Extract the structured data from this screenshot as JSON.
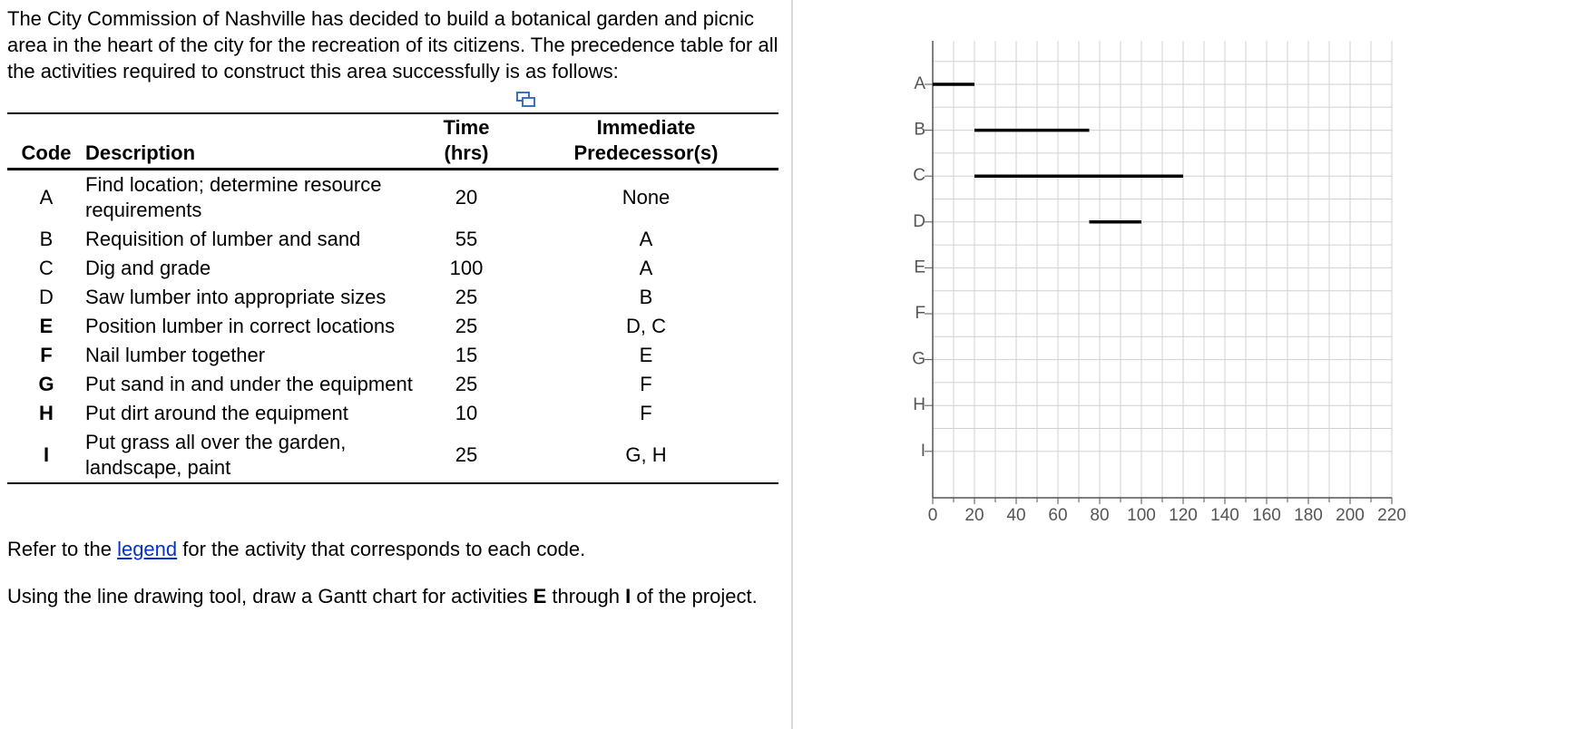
{
  "intro": "The City Commission of Nashville has decided to build a botanical garden and picnic area in the heart of the city for the recreation of its citizens. The precedence table for all the activities required to construct this area successfully is as follows:",
  "table": {
    "headers": [
      "Code",
      "Description",
      "Time (hrs)",
      "Immediate Predecessor(s)"
    ],
    "rows": [
      [
        "A",
        "Find location; determine resource requirements",
        20,
        "None"
      ],
      [
        "B",
        "Requisition of lumber and sand",
        55,
        "A"
      ],
      [
        "C",
        "Dig and grade",
        100,
        "A"
      ],
      [
        "D",
        "Saw lumber into appropriate sizes",
        25,
        "B"
      ],
      [
        "E",
        "Position lumber in correct locations",
        25,
        "D, C"
      ],
      [
        "F",
        "Nail lumber together",
        15,
        "E"
      ],
      [
        "G",
        "Put sand in and under the equipment",
        25,
        "F"
      ],
      [
        "H",
        "Put dirt around the equipment",
        10,
        "F"
      ],
      [
        "I",
        "Put grass all over the garden, landscape, paint",
        25,
        "G, H"
      ]
    ]
  },
  "legend_note": [
    "Refer to the ",
    "legend",
    " for the activity that corresponds to each code."
  ],
  "instruction": [
    "Using the line drawing tool, draw a Gantt chart for activities ",
    "E",
    " through ",
    "I",
    " of the project."
  ],
  "chart_data": {
    "type": "gantt",
    "categories": [
      "A",
      "B",
      "C",
      "D",
      "E",
      "F",
      "G",
      "H",
      "I"
    ],
    "start": [
      0,
      20,
      20,
      75,
      null,
      null,
      null,
      null,
      null
    ],
    "end": [
      20,
      75,
      120,
      100,
      null,
      null,
      null,
      null,
      null
    ],
    "color": "#000000",
    "xlim": [
      0,
      220
    ],
    "xticks": [
      0,
      20,
      40,
      60,
      80,
      100,
      120,
      140,
      160,
      180,
      200,
      220
    ],
    "x_minor_ticks": [
      10,
      30,
      50,
      70,
      90,
      110,
      130,
      150,
      170,
      190,
      210
    ],
    "grid": true
  }
}
